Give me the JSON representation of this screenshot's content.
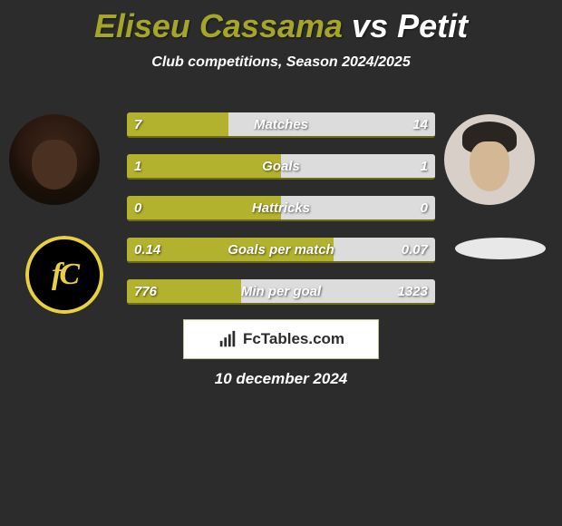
{
  "title": {
    "player1": "Eliseu Cassama",
    "vs": "vs",
    "player2": "Petit",
    "player1_color": "#a5a52a",
    "vs_color": "#ffffff",
    "player2_color": "#ffffff",
    "fontsize": 36
  },
  "subtitle": "Club competitions, Season 2024/2025",
  "background_color": "#2c2c2c",
  "bars": {
    "left_color": "#b2b22e",
    "right_color": "#dcdcdc",
    "underline_color": "#6c6c1a",
    "label_fontsize": 15,
    "rows": [
      {
        "label": "Matches",
        "left_val": "7",
        "right_val": "14",
        "left_pct": 33,
        "right_pct": 67
      },
      {
        "label": "Goals",
        "left_val": "1",
        "right_val": "1",
        "left_pct": 50,
        "right_pct": 50
      },
      {
        "label": "Hattricks",
        "left_val": "0",
        "right_val": "0",
        "left_pct": 50,
        "right_pct": 50
      },
      {
        "label": "Goals per match",
        "left_val": "0.14",
        "right_val": "0.07",
        "left_pct": 67,
        "right_pct": 33
      },
      {
        "label": "Min per goal",
        "left_val": "776",
        "right_val": "1323",
        "left_pct": 37,
        "right_pct": 63
      }
    ]
  },
  "brand": {
    "text": "FcTables.com",
    "box_bg": "#ffffff",
    "box_border": "#c0c09a",
    "icon_color": "#2c2c2c"
  },
  "date": "10 december 2024",
  "club_left": {
    "bg": "#000000",
    "ring": "#e8d040",
    "text": "fC",
    "text_color": "#e8d040"
  },
  "club_right_ellipse_color": "#e8e8e8"
}
